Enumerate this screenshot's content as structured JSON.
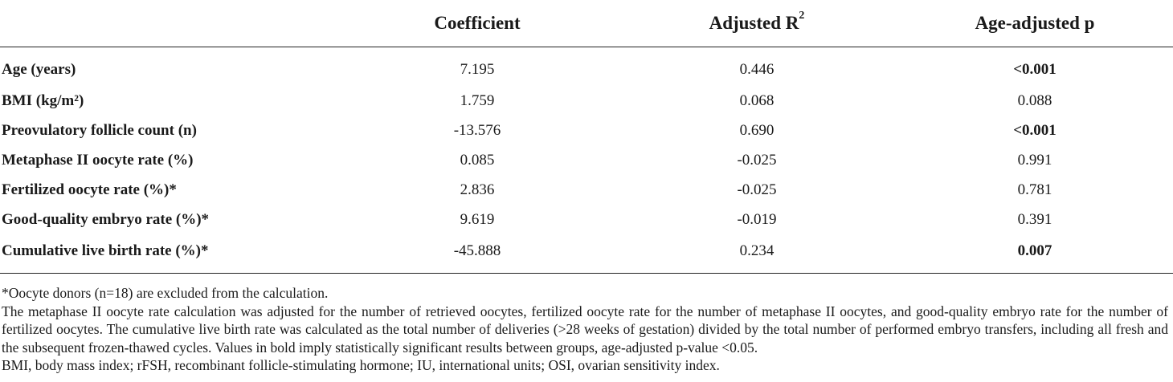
{
  "table": {
    "headers": [
      "",
      "Coefficient",
      "Adjusted R",
      "Age-adjusted p"
    ],
    "header_sup": "2",
    "rows": [
      {
        "label": "Age (years)",
        "coefficient": "7.195",
        "adj_r2": "0.446",
        "p": "<0.001",
        "p_bold": true
      },
      {
        "label": "BMI (kg/m²)",
        "coefficient": "1.759",
        "adj_r2": "0.068",
        "p": "0.088",
        "p_bold": false
      },
      {
        "label": "Preovulatory follicle count (n)",
        "coefficient": "-13.576",
        "adj_r2": "0.690",
        "p": "<0.001",
        "p_bold": true
      },
      {
        "label": "Metaphase II oocyte rate (%)",
        "coefficient": "0.085",
        "adj_r2": "-0.025",
        "p": "0.991",
        "p_bold": false
      },
      {
        "label": "Fertilized oocyte rate (%)*",
        "coefficient": "2.836",
        "adj_r2": "-0.025",
        "p": "0.781",
        "p_bold": false
      },
      {
        "label": "Good-quality embryo rate (%)*",
        "coefficient": "9.619",
        "adj_r2": "-0.019",
        "p": "0.391",
        "p_bold": false
      },
      {
        "label": "Cumulative live birth rate (%)*",
        "coefficient": "-45.888",
        "adj_r2": "0.234",
        "p": "0.007",
        "p_bold": true
      }
    ]
  },
  "notes": {
    "footnote": "*Oocyte donors (n=18) are excluded from the calculation.",
    "method": "The metaphase II oocyte rate calculation was adjusted for the number of retrieved oocytes, fertilized oocyte rate for the number of metaphase II oocytes, and good-quality embryo rate for the number of fertilized oocytes. The cumulative live birth rate was calculated as the total number of deliveries (>28 weeks of gestation) divided by the total number of performed embryo transfers, including all fresh and the subsequent frozen-thawed cycles. Values in bold imply statistically significant results between groups, age-adjusted p-value <0.05.",
    "abbreviations": "BMI, body mass index; rFSH, recombinant follicle-stimulating hormone; IU, international units; OSI, ovarian sensitivity index."
  }
}
